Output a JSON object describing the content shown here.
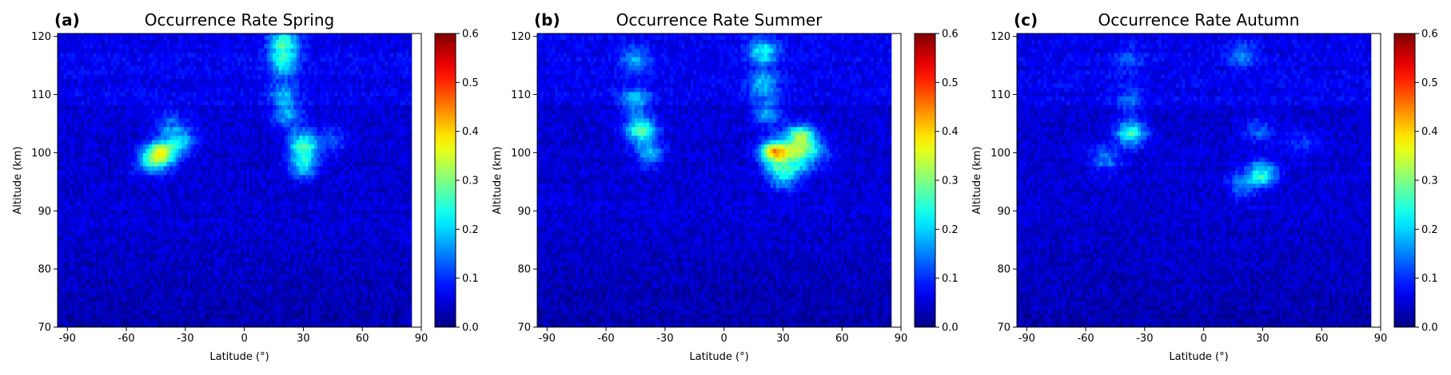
{
  "chart_data": [
    {
      "type": "heatmap",
      "panel_label": "(a)",
      "title": "Occurrence Rate Spring",
      "xlabel": "Latitude (°)",
      "ylabel": "Altitude (km)",
      "xlim": [
        -95,
        90
      ],
      "ylim": [
        70,
        120.5
      ],
      "xticks": [
        -90,
        -60,
        -30,
        0,
        30,
        60,
        90
      ],
      "yticks": [
        70,
        80,
        90,
        100,
        110,
        120
      ],
      "data_extent_lat": [
        -95,
        85
      ],
      "colorbar": {
        "min": 0.0,
        "max": 0.6,
        "ticks": [
          "0.0",
          "0.1",
          "0.2",
          "0.3",
          "0.4",
          "0.5",
          "0.6"
        ],
        "colormap": "jet"
      },
      "background_rate": 0.05,
      "hotspots": [
        {
          "lat": -42,
          "alt": 100,
          "rate": 0.3
        },
        {
          "lat": -32,
          "alt": 102,
          "rate": 0.15
        },
        {
          "lat": -48,
          "alt": 98.5,
          "rate": 0.14
        },
        {
          "lat": -38,
          "alt": 105,
          "rate": 0.08
        },
        {
          "lat": 20,
          "alt": 119,
          "rate": 0.2
        },
        {
          "lat": 20,
          "alt": 115.5,
          "rate": 0.14
        },
        {
          "lat": 20,
          "alt": 110.5,
          "rate": 0.1
        },
        {
          "lat": 22,
          "alt": 106.5,
          "rate": 0.12
        },
        {
          "lat": 30,
          "alt": 101.5,
          "rate": 0.22
        },
        {
          "lat": 30,
          "alt": 98,
          "rate": 0.17
        },
        {
          "lat": 45,
          "alt": 102,
          "rate": 0.08
        }
      ]
    },
    {
      "type": "heatmap",
      "panel_label": "(b)",
      "title": "Occurrence Rate Summer",
      "xlabel": "Latitude (°)",
      "ylabel": "Altitude (km)",
      "xlim": [
        -95,
        90
      ],
      "ylim": [
        70,
        120.5
      ],
      "xticks": [
        -90,
        -60,
        -30,
        0,
        30,
        60,
        90
      ],
      "yticks": [
        70,
        80,
        90,
        100,
        110,
        120
      ],
      "data_extent_lat": [
        -95,
        85
      ],
      "colorbar": {
        "min": 0.0,
        "max": 0.6,
        "ticks": [
          "0.0",
          "0.1",
          "0.2",
          "0.3",
          "0.4",
          "0.5",
          "0.6"
        ],
        "colormap": "jet"
      },
      "background_rate": 0.05,
      "hotspots": [
        {
          "lat": -42,
          "alt": 104,
          "rate": 0.22
        },
        {
          "lat": -45,
          "alt": 109,
          "rate": 0.13
        },
        {
          "lat": -38,
          "alt": 100,
          "rate": 0.12
        },
        {
          "lat": -45,
          "alt": 116,
          "rate": 0.1
        },
        {
          "lat": 20,
          "alt": 117.5,
          "rate": 0.16
        },
        {
          "lat": 20,
          "alt": 112,
          "rate": 0.13
        },
        {
          "lat": 22,
          "alt": 107,
          "rate": 0.12
        },
        {
          "lat": 26,
          "alt": 100,
          "rate": 0.36
        },
        {
          "lat": 39,
          "alt": 102.5,
          "rate": 0.28
        },
        {
          "lat": 38,
          "alt": 99,
          "rate": 0.18
        },
        {
          "lat": 30,
          "alt": 96,
          "rate": 0.16
        },
        {
          "lat": 48,
          "alt": 100,
          "rate": 0.08
        }
      ]
    },
    {
      "type": "heatmap",
      "panel_label": "(c)",
      "title": "Occurrence Rate Autumn",
      "xlabel": "Latitude (°)",
      "ylabel": "Altitude (km)",
      "xlim": [
        -95,
        90
      ],
      "ylim": [
        70,
        120.5
      ],
      "xticks": [
        -90,
        -60,
        -30,
        0,
        30,
        60,
        90
      ],
      "yticks": [
        70,
        80,
        90,
        100,
        110,
        120
      ],
      "data_extent_lat": [
        -95,
        85
      ],
      "colorbar": {
        "min": 0.0,
        "max": 0.6,
        "ticks": [
          "0.0",
          "0.1",
          "0.2",
          "0.3",
          "0.4",
          "0.5",
          "0.6"
        ],
        "colormap": "jet"
      },
      "background_rate": 0.05,
      "hotspots": [
        {
          "lat": -37,
          "alt": 103.5,
          "rate": 0.2
        },
        {
          "lat": -50,
          "alt": 99,
          "rate": 0.1
        },
        {
          "lat": -38,
          "alt": 109,
          "rate": 0.07
        },
        {
          "lat": -38,
          "alt": 116,
          "rate": 0.06
        },
        {
          "lat": 30,
          "alt": 96.5,
          "rate": 0.18
        },
        {
          "lat": 20,
          "alt": 94.5,
          "rate": 0.1
        },
        {
          "lat": 28,
          "alt": 104,
          "rate": 0.08
        },
        {
          "lat": 20,
          "alt": 117,
          "rate": 0.08
        },
        {
          "lat": 50,
          "alt": 102,
          "rate": 0.06
        }
      ]
    }
  ]
}
